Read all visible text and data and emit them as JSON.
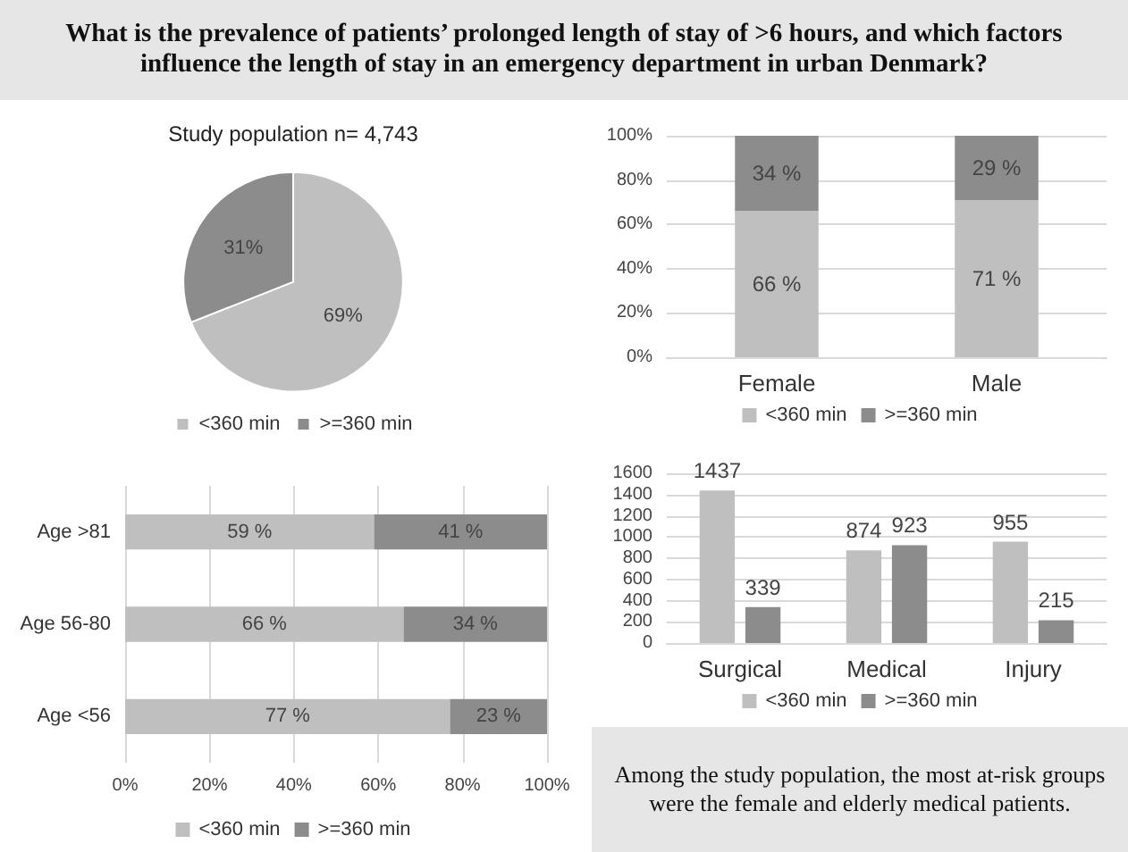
{
  "chart_data": [
    {
      "type": "other",
      "title": "What is the prevalence of patients’ prolonged length of stay of >6 hours, and which factors influence the length of stay in an emergency department in urban Denmark?"
    },
    {
      "type": "pie",
      "title": "Study population n= 4,743",
      "categories": [
        "<360 min",
        ">=360 min"
      ],
      "values": [
        69,
        31
      ],
      "colors": [
        "#bfbfbf",
        "#8c8c8c"
      ],
      "value_labels": [
        "69%",
        "31%"
      ],
      "legend": "bottom"
    },
    {
      "type": "bar",
      "stacked": true,
      "categories": [
        "Female",
        "Male"
      ],
      "series": [
        {
          "name": "<360 min",
          "color": "#bfbfbf",
          "values": [
            66,
            71
          ],
          "value_labels": [
            "66 %",
            "71 %"
          ]
        },
        {
          "name": ">=360 min",
          "color": "#8c8c8c",
          "values": [
            34,
            29
          ],
          "value_labels": [
            "34 %",
            "29 %"
          ]
        }
      ],
      "ylim": [
        0,
        100
      ],
      "yticks": [
        {
          "value": 0,
          "label": "0%"
        },
        {
          "value": 20,
          "label": "20%"
        },
        {
          "value": 40,
          "label": "40%"
        },
        {
          "value": 60,
          "label": "60%"
        },
        {
          "value": 80,
          "label": "80%"
        },
        {
          "value": 100,
          "label": "100%"
        }
      ],
      "grid": "y",
      "legend": "bottom"
    },
    {
      "type": "bar",
      "stacked": true,
      "orientation": "horizontal",
      "categories": [
        "Age >81",
        "Age 56-80",
        "Age <56"
      ],
      "series": [
        {
          "name": "<360 min",
          "color": "#bfbfbf",
          "values": [
            59,
            66,
            77
          ],
          "value_labels": [
            "59 %",
            "66 %",
            "77 %"
          ]
        },
        {
          "name": ">=360 min",
          "color": "#8c8c8c",
          "values": [
            41,
            34,
            23
          ],
          "value_labels": [
            "41 %",
            "34 %",
            "23 %"
          ]
        }
      ],
      "xlim": [
        0,
        100
      ],
      "xticks": [
        {
          "value": 0,
          "label": "0%"
        },
        {
          "value": 20,
          "label": "20%"
        },
        {
          "value": 40,
          "label": "40%"
        },
        {
          "value": 60,
          "label": "60%"
        },
        {
          "value": 80,
          "label": "80%"
        },
        {
          "value": 100,
          "label": "100%"
        }
      ],
      "grid": "x",
      "legend": "bottom"
    },
    {
      "type": "bar",
      "categories": [
        "Surgical",
        "Medical",
        "Injury"
      ],
      "series": [
        {
          "name": "<360 min",
          "color": "#bfbfbf",
          "values": [
            1437,
            874,
            955
          ]
        },
        {
          "name": ">=360 min",
          "color": "#8c8c8c",
          "values": [
            339,
            923,
            215
          ]
        }
      ],
      "ylim": [
        0,
        1600
      ],
      "yticks": [
        0,
        200,
        400,
        600,
        800,
        1000,
        1200,
        1400,
        1600
      ],
      "grid": "y",
      "data_labels": true,
      "legend": "bottom"
    },
    {
      "type": "other",
      "annotations": [
        "Among the study population, the most at-risk groups were the female and elderly medical patients."
      ]
    }
  ]
}
